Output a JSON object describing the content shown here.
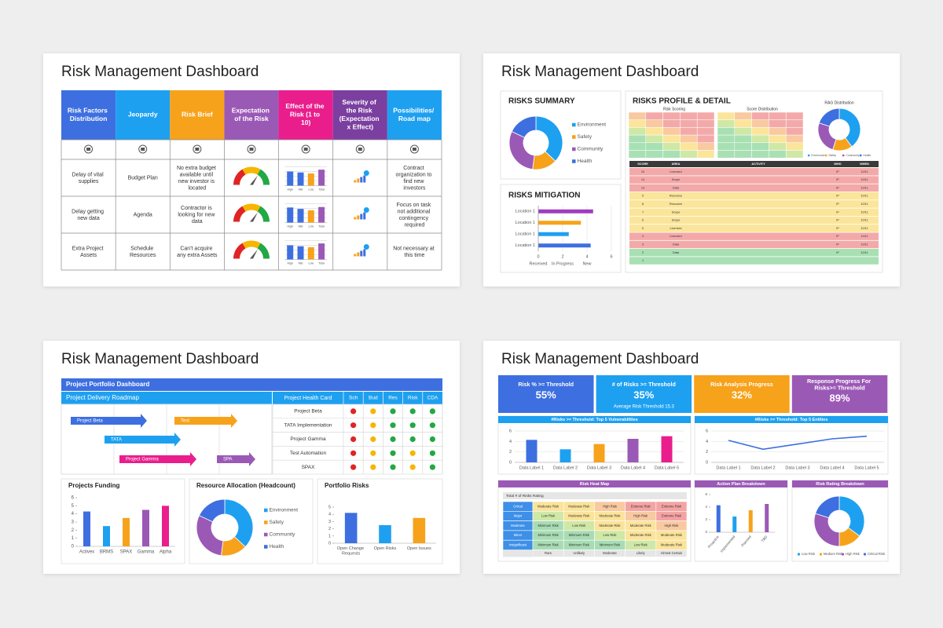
{
  "slides": [
    {
      "title": "Risk Management Dashboard",
      "table": {
        "headers": [
          {
            "text": "Risk Factors Distribution",
            "color": "#3d6fe0"
          },
          {
            "text": "Jeopardy",
            "color": "#1ea0f0"
          },
          {
            "text": "Risk Brief",
            "color": "#f7a21b"
          },
          {
            "text": "Expectation of the Risk",
            "color": "#9b59b6"
          },
          {
            "text": "Effect of the Risk (1 to 10)",
            "color": "#e91e8c"
          },
          {
            "text": "Severity of the Risk (Expectation x Effect)",
            "color": "#7b3fa0"
          },
          {
            "text": "Possibilities/ Road map",
            "color": "#1ea0f0"
          }
        ],
        "rows": [
          {
            "factor": "Delay of vital supplies",
            "jeopardy": "Budget Plan",
            "brief": "No extra budget available until new investor is located",
            "effect": {
              "type": "bar",
              "categories": [
                "High",
                "Mid",
                "Low",
                "Total"
              ],
              "values": [
                3,
                2.8,
                2.6,
                3.4
              ],
              "ylim": [
                0,
                4
              ],
              "colors": [
                "#3d6fe0",
                "#3d6fe0",
                "#f7a21b",
                "#9b59b6"
              ]
            },
            "roadmap": "Contract organization to find new investors"
          },
          {
            "factor": "Delay getting new data",
            "jeopardy": "Agenda",
            "brief": "Contractor is looking for new data",
            "effect": {
              "type": "bar",
              "categories": [
                "High",
                "Mid",
                "Low",
                "Total"
              ],
              "values": [
                3.2,
                2.9,
                2.6,
                3.3
              ],
              "ylim": [
                0,
                4
              ],
              "colors": [
                "#3d6fe0",
                "#3d6fe0",
                "#f7a21b",
                "#9b59b6"
              ]
            },
            "roadmap": "Focus on task not additional contingency required"
          },
          {
            "factor": "Extra Project Assets",
            "jeopardy": "Schedule Resources",
            "brief": "Can't acquire any extra Assets",
            "effect": {
              "type": "bar",
              "categories": [
                "High",
                "Mid",
                "Low",
                "Total"
              ],
              "values": [
                3,
                2.8,
                2.6,
                3.4
              ],
              "ylim": [
                0,
                4
              ],
              "colors": [
                "#3d6fe0",
                "#3d6fe0",
                "#f7a21b",
                "#9b59b6"
              ]
            },
            "roadmap": "Not necessary at this time"
          }
        ]
      }
    },
    {
      "title": "Risk Management Dashboard",
      "summary": {
        "title": "RISKS SUMMARY",
        "chart": {
          "type": "pie",
          "categories": [
            "Environment",
            "Safety",
            "Community",
            "Health"
          ],
          "values": [
            37,
            15,
            30,
            18
          ],
          "colors": [
            "#1ea0f0",
            "#f7a21b",
            "#9b59b6",
            "#3d6fe0"
          ]
        }
      },
      "mitigation": {
        "title": "RISKS MITIGATION",
        "chart": {
          "type": "hbar",
          "categories": [
            "Location 1",
            "Location 1",
            "Location 1",
            "Location 1"
          ],
          "values": [
            4.5,
            3.5,
            2.5,
            4.3
          ],
          "colors": [
            "#a03cc0",
            "#f7a21b",
            "#1ea0f0",
            "#3d6fe0"
          ],
          "xlim": [
            0,
            6
          ],
          "xticks": [
            0,
            2,
            4,
            6
          ],
          "xlabels": [
            "Received",
            "In Progress",
            "New"
          ]
        }
      },
      "profile": {
        "title": "RISKS PROFILE & DETAIL",
        "scoring_title": "Risk Scoring",
        "distribution_title": "Score Distribution",
        "rag": {
          "title": "RAG Distribution",
          "type": "pie",
          "categories": [
            "Environment",
            "Safety",
            "Community",
            "Health"
          ],
          "values": [
            40,
            15,
            25,
            20
          ],
          "colors": [
            "#1ea0f0",
            "#f7a21b",
            "#9b59b6",
            "#3d6fe0"
          ]
        },
        "detail": {
          "headers": [
            "SCORE",
            "AREA",
            "ACTIVITY",
            "WHO",
            "WHEN"
          ],
          "rag_colors": {
            "red": "#f4a9a9",
            "yellow": "#fbe59a",
            "green": "#a8e0b4"
          },
          "rows": [
            {
              "score": 15,
              "area": "Licensed",
              "who": "IP",
              "when": "10/11",
              "rag": "red"
            },
            {
              "score": 14,
              "area": "Scope",
              "who": "IP",
              "when": "10/11",
              "rag": "red"
            },
            {
              "score": 13,
              "area": "Data",
              "who": "IP",
              "when": "10/11",
              "rag": "red"
            },
            {
              "score": 9,
              "area": "Resource",
              "who": "IP",
              "when": "10/11",
              "rag": "yellow"
            },
            {
              "score": 8,
              "area": "Resource",
              "who": "IP",
              "when": "10/11",
              "rag": "yellow"
            },
            {
              "score": 7,
              "area": "Scope",
              "who": "IP",
              "when": "10/11",
              "rag": "yellow"
            },
            {
              "score": 6,
              "area": "Scope",
              "who": "IP",
              "when": "10/11",
              "rag": "yellow"
            },
            {
              "score": 5,
              "area": "Licenses",
              "who": "IP",
              "when": "10/11",
              "rag": "yellow"
            },
            {
              "score": 4,
              "area": "Licensed",
              "who": "IP",
              "when": "10/11",
              "rag": "red"
            },
            {
              "score": 3,
              "area": "Data",
              "who": "IP",
              "when": "10/11",
              "rag": "red"
            },
            {
              "score": 2,
              "area": "Data",
              "who": "IP",
              "when": "10/11",
              "rag": "green"
            },
            {
              "score": 1,
              "rag": "green"
            }
          ]
        }
      }
    },
    {
      "title": "Risk Management Dashboard",
      "portfolio_title": "Project Portfolio Dashboard",
      "roadmap": {
        "title": "Project Delivery Roadmap",
        "tasks": [
          {
            "name": "Project Beta",
            "color": "#3d6fe0"
          },
          {
            "name": "Test",
            "color": "#f7a21b"
          },
          {
            "name": "TATA",
            "color": "#1ea0f0"
          },
          {
            "name": "Project Gamma",
            "color": "#e91e8c"
          },
          {
            "name": "SPA",
            "color": "#9b59b6"
          }
        ]
      },
      "health": {
        "title": "Project Health Card",
        "columns": [
          "Sch",
          "Bud",
          "Res",
          "Risk",
          "CDA"
        ],
        "status_colors": {
          "red": "#e02424",
          "yellow": "#f7b500",
          "green": "#22a845"
        },
        "projects": [
          {
            "name": "Project Beta",
            "status": [
              "red",
              "yellow",
              "green",
              "green",
              "green"
            ]
          },
          {
            "name": "TATA Implementation",
            "status": [
              "red",
              "yellow",
              "green",
              "green",
              "green"
            ]
          },
          {
            "name": "Project Gamma",
            "status": [
              "red",
              "yellow",
              "green",
              "green",
              "green"
            ]
          },
          {
            "name": "Test Automation",
            "status": [
              "red",
              "yellow",
              "green",
              "yellow",
              "green"
            ]
          },
          {
            "name": "SPAX",
            "status": [
              "red",
              "yellow",
              "green",
              "yellow",
              "green"
            ]
          }
        ]
      },
      "funding": {
        "title": "Projects Funding",
        "type": "bar",
        "categories": [
          "Activex",
          "BRMS",
          "SPAX",
          "Gamma",
          "Alpha"
        ],
        "values": [
          4.3,
          2.5,
          3.5,
          4.5,
          5
        ],
        "colors": [
          "#3d6fe0",
          "#1ea0f0",
          "#f7a21b",
          "#9b59b6",
          "#e91e8c"
        ],
        "ylim": [
          0,
          6
        ],
        "yticks": [
          0,
          1,
          2,
          3,
          4,
          5,
          6
        ]
      },
      "resource": {
        "title": "Resource Allocation (Headcount)",
        "type": "pie",
        "categories": [
          "Environment",
          "Safety",
          "Community",
          "Health"
        ],
        "values": [
          37,
          15,
          30,
          18
        ],
        "colors": [
          "#1ea0f0",
          "#f7a21b",
          "#9b59b6",
          "#3d6fe0"
        ]
      },
      "risks": {
        "title": "Portfolio Risks",
        "type": "bar",
        "categories": [
          "Open Change Requests",
          "Open Risks",
          "Open Issues"
        ],
        "values": [
          4.2,
          2.5,
          3.5
        ],
        "colors": [
          "#3d6fe0",
          "#1ea0f0",
          "#f7a21b"
        ],
        "ylim": [
          0,
          5
        ],
        "yticks": [
          0,
          1,
          2,
          3,
          4,
          5
        ]
      }
    },
    {
      "title": "Risk Management Dashboard",
      "kpis": [
        {
          "label": "Risk % >= Threshold",
          "value": "55%",
          "color": "#3d6fe0"
        },
        {
          "label": "# of Risks >= Threshold",
          "value": "35%",
          "note": "Average Risk Threshold 15.3",
          "color": "#1ea0f0"
        },
        {
          "label": "Risk Analysis Progress",
          "value": "32%",
          "color": "#f7a21b"
        },
        {
          "label": "Response Progress For Risks>= Threshold",
          "value": "89%",
          "color": "#9b59b6"
        }
      ],
      "vulnerabilities": {
        "title": "#Risks >= Threshold: Top 5 Vulnerabilities",
        "type": "bar",
        "categories": [
          "Data Label 1",
          "Data Label 2",
          "Data Label 3",
          "Data Label 4",
          "Data Label 5"
        ],
        "values": [
          4.3,
          2.5,
          3.5,
          4.5,
          5
        ],
        "colors": [
          "#3d6fe0",
          "#1ea0f0",
          "#f7a21b",
          "#9b59b6",
          "#e91e8c"
        ],
        "ylim": [
          0,
          6
        ],
        "yticks": [
          0,
          2,
          4,
          6
        ],
        "grid": true
      },
      "entities": {
        "title": "#Risks >= Threshold: Top 5 Entities",
        "type": "line",
        "categories": [
          "Data Label 1",
          "Data Label 2",
          "Data Label 3",
          "Data Label 4",
          "Data Label 5"
        ],
        "values": [
          4.2,
          2.5,
          3.5,
          4.5,
          5
        ],
        "color": "#3d6fe0",
        "ylim": [
          0,
          6
        ],
        "yticks": [
          0,
          2,
          4,
          6
        ],
        "grid": true
      },
      "heatmap": {
        "title": "Risk Heat Map",
        "subtitle": "Total # of Risks Rating",
        "impacts": [
          "Crtical",
          "Major",
          "Moderate",
          "Minor",
          "Insignificant"
        ],
        "likelihoods": [
          "Rare",
          "Unlikely",
          "Moderate",
          "Likely",
          "Almost Certain"
        ],
        "level_colors": {
          "Minimum Risk": "#a8dcb4",
          "Low Risk": "#cfe8a6",
          "Moderate Risk": "#fbe39a",
          "High Risk": "#f9c9a0",
          "Extreme Risk": "#f4a3a3"
        },
        "cells": [
          [
            "Moderate Risk",
            "Moderate Risk",
            "High Risk",
            "Extreme Risk",
            "Extreme Risk"
          ],
          [
            "Low Risk",
            "Moderate Risk",
            "Moderate Risk",
            "High Risk",
            "Extreme Risk"
          ],
          [
            "Minimum Risk",
            "Low Risk",
            "Moderate Risk",
            "Moderate Risk",
            "High Risk"
          ],
          [
            "Minimum Risk",
            "Minimum Risk",
            "Low Risk",
            "Moderate Risk",
            "Moderate Risk"
          ],
          [
            "Minimum Risk",
            "Minimum Risk",
            "Minimum Risk",
            "Low Risk",
            "Moderate Risk"
          ]
        ]
      },
      "actions": {
        "title": "Action Plan Breakdown",
        "type": "bar",
        "categories": [
          "Proactive",
          "Implemented",
          "Planned",
          "TBD"
        ],
        "values": [
          4.3,
          2.5,
          3.5,
          4.5
        ],
        "colors": [
          "#3d6fe0",
          "#1ea0f0",
          "#f7a21b",
          "#9b59b6"
        ],
        "ylim": [
          0,
          6
        ],
        "yticks": [
          0,
          2,
          4,
          6
        ]
      },
      "rating": {
        "title": "Risk Rating Breakdown",
        "type": "pie",
        "categories": [
          "Low Risk",
          "Medium Risk",
          "High Risk",
          "Critical Risk"
        ],
        "values": [
          35,
          15,
          30,
          20
        ],
        "colors": [
          "#1ea0f0",
          "#f7a21b",
          "#9b59b6",
          "#3d6fe0"
        ]
      }
    }
  ]
}
